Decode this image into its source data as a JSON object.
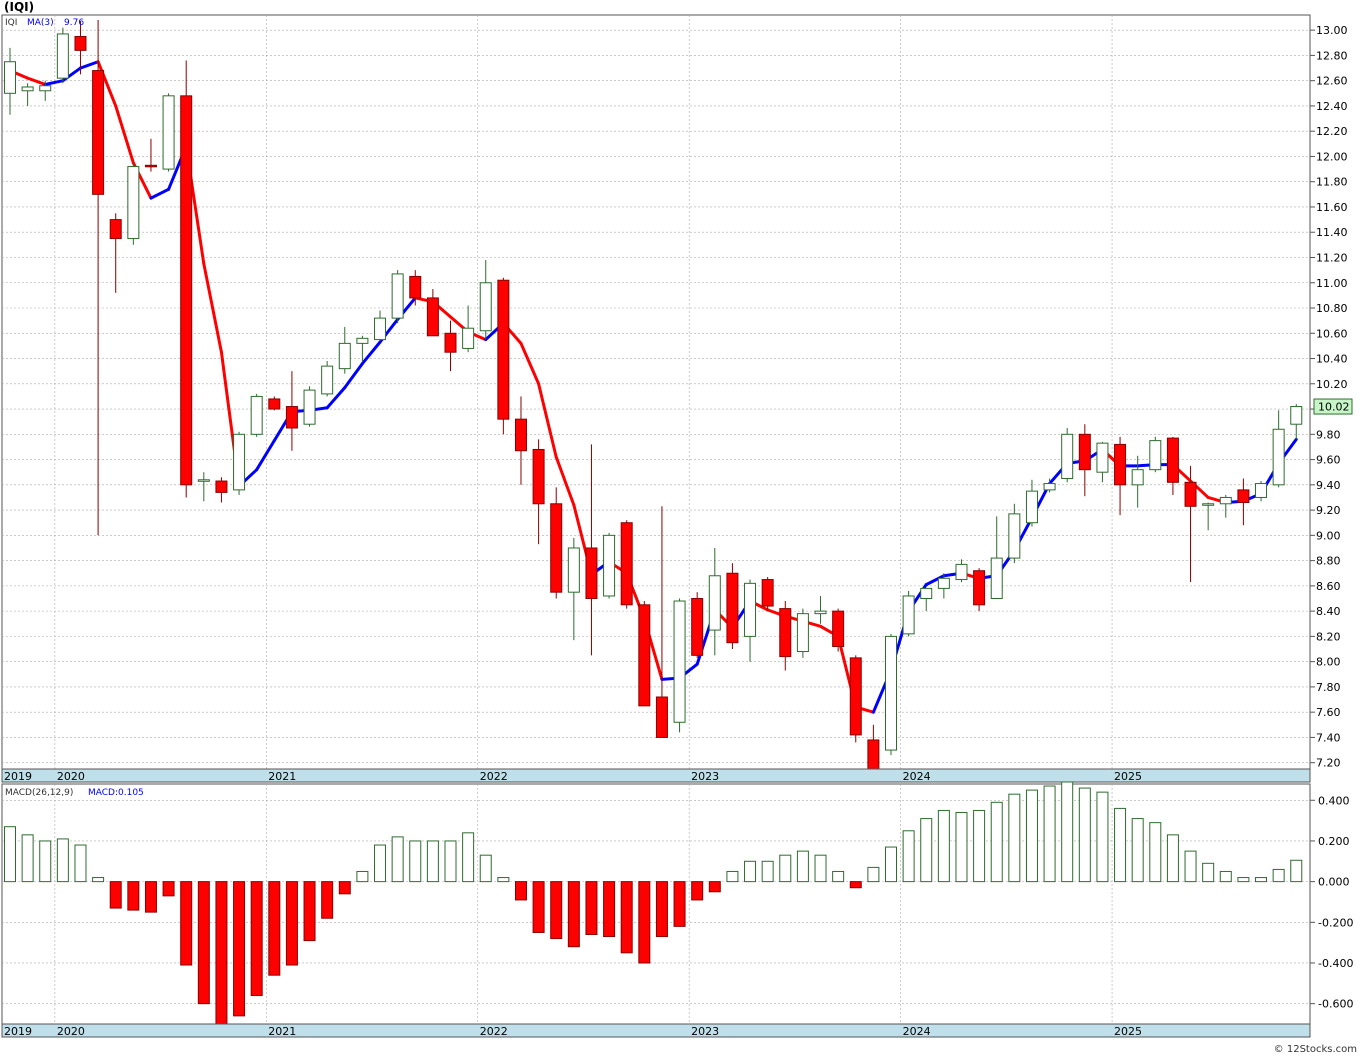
{
  "header": {
    "title": "(IQI)"
  },
  "watermark": "© 12Stocks.com",
  "price_panel": {
    "legend_symbol": "IQI",
    "legend_ma_label": "MA(3)",
    "legend_ma_value": "9.76",
    "last_price_label": "10.02",
    "last_price_value": 10.02,
    "y_ticks": [
      "13.00",
      "12.80",
      "12.60",
      "12.40",
      "12.20",
      "12.00",
      "11.80",
      "11.60",
      "11.40",
      "11.20",
      "11.00",
      "10.80",
      "10.60",
      "10.40",
      "10.20",
      "10.00",
      "9.80",
      "9.60",
      "9.40",
      "9.20",
      "9.00",
      "8.80",
      "8.60",
      "8.40",
      "8.20",
      "8.00",
      "7.80",
      "7.60",
      "7.40",
      "7.20"
    ]
  },
  "macd_panel": {
    "legend_label": "MACD(26,12,9)",
    "legend_value": "MACD:0.105",
    "y_ticks": [
      "0.400",
      "0.200",
      "0.000",
      "-0.200",
      "-0.400",
      "-0.600"
    ]
  },
  "x_axis": {
    "labels": [
      {
        "text": "2019",
        "index": -0.35
      },
      {
        "text": "2020",
        "index": 3.0
      },
      {
        "text": "2021",
        "index": 15.0
      },
      {
        "text": "2022",
        "index": 27.0
      },
      {
        "text": "2023",
        "index": 39.0
      },
      {
        "text": "2024",
        "index": 51.0
      },
      {
        "text": "2025",
        "index": 63.0
      }
    ]
  },
  "colors": {
    "up_border": "#2f6b2f",
    "down_fill": "#ff0000",
    "ma_up": "#0000ff",
    "ma_down": "#ff0000",
    "axis_band": "#bfe0ea",
    "grid": "#aaaaaa",
    "last_price_bg": "#c8f5c8"
  },
  "chart_data": [
    {
      "type": "candlestick",
      "period": "monthly",
      "series_name": "IQI",
      "ylim": [
        7.15,
        13.12
      ],
      "grid": true,
      "candles": [
        {
          "o": 12.5,
          "h": 12.86,
          "l": 12.33,
          "c": 12.75
        },
        {
          "o": 12.52,
          "h": 12.58,
          "l": 12.4,
          "c": 12.55
        },
        {
          "o": 12.52,
          "h": 12.6,
          "l": 12.44,
          "c": 12.56
        },
        {
          "o": 12.62,
          "h": 13.02,
          "l": 12.58,
          "c": 12.97
        },
        {
          "o": 12.95,
          "h": 13.07,
          "l": 12.65,
          "c": 12.84
        },
        {
          "o": 12.68,
          "h": 13.08,
          "l": 9.0,
          "c": 11.7
        },
        {
          "o": 11.5,
          "h": 11.55,
          "l": 10.92,
          "c": 11.35
        },
        {
          "o": 11.35,
          "h": 11.95,
          "l": 11.3,
          "c": 11.92
        },
        {
          "o": 11.93,
          "h": 12.14,
          "l": 11.88,
          "c": 11.92
        },
        {
          "o": 11.9,
          "h": 12.5,
          "l": 11.88,
          "c": 12.48
        },
        {
          "o": 12.48,
          "h": 12.76,
          "l": 9.3,
          "c": 9.4
        },
        {
          "o": 9.44,
          "h": 9.5,
          "l": 9.27,
          "c": 9.44
        },
        {
          "o": 9.43,
          "h": 9.46,
          "l": 9.26,
          "c": 9.34
        },
        {
          "o": 9.36,
          "h": 9.82,
          "l": 9.32,
          "c": 9.8
        },
        {
          "o": 9.8,
          "h": 10.12,
          "l": 9.78,
          "c": 10.1
        },
        {
          "o": 10.08,
          "h": 10.1,
          "l": 9.99,
          "c": 10.0
        },
        {
          "o": 10.02,
          "h": 10.3,
          "l": 9.67,
          "c": 9.85
        },
        {
          "o": 9.88,
          "h": 10.18,
          "l": 9.86,
          "c": 10.15
        },
        {
          "o": 10.12,
          "h": 10.38,
          "l": 10.1,
          "c": 10.34
        },
        {
          "o": 10.32,
          "h": 10.65,
          "l": 10.28,
          "c": 10.52
        },
        {
          "o": 10.52,
          "h": 10.58,
          "l": 10.38,
          "c": 10.56
        },
        {
          "o": 10.55,
          "h": 10.78,
          "l": 10.54,
          "c": 10.72
        },
        {
          "o": 10.72,
          "h": 11.1,
          "l": 10.68,
          "c": 11.07
        },
        {
          "o": 11.05,
          "h": 11.1,
          "l": 10.82,
          "c": 10.88
        },
        {
          "o": 10.88,
          "h": 10.95,
          "l": 10.58,
          "c": 10.58
        },
        {
          "o": 10.6,
          "h": 10.7,
          "l": 10.3,
          "c": 10.45
        },
        {
          "o": 10.48,
          "h": 10.82,
          "l": 10.45,
          "c": 10.64
        },
        {
          "o": 10.62,
          "h": 11.18,
          "l": 10.55,
          "c": 11.0
        },
        {
          "o": 11.02,
          "h": 11.04,
          "l": 9.8,
          "c": 9.92
        },
        {
          "o": 9.92,
          "h": 10.1,
          "l": 9.4,
          "c": 9.67
        },
        {
          "o": 9.68,
          "h": 9.76,
          "l": 8.93,
          "c": 9.25
        },
        {
          "o": 9.25,
          "h": 9.38,
          "l": 8.5,
          "c": 8.55
        },
        {
          "o": 8.55,
          "h": 8.98,
          "l": 8.17,
          "c": 8.9
        },
        {
          "o": 8.9,
          "h": 9.72,
          "l": 8.05,
          "c": 8.5
        },
        {
          "o": 8.52,
          "h": 9.02,
          "l": 8.5,
          "c": 9.0
        },
        {
          "o": 9.1,
          "h": 9.12,
          "l": 8.42,
          "c": 8.45
        },
        {
          "o": 8.45,
          "h": 8.48,
          "l": 7.65,
          "c": 7.65
        },
        {
          "o": 7.72,
          "h": 9.23,
          "l": 7.42,
          "c": 7.4
        },
        {
          "o": 7.52,
          "h": 8.5,
          "l": 7.44,
          "c": 8.48
        },
        {
          "o": 8.5,
          "h": 8.55,
          "l": 8.03,
          "c": 8.05
        },
        {
          "o": 8.25,
          "h": 8.9,
          "l": 8.05,
          "c": 8.68
        },
        {
          "o": 8.7,
          "h": 8.78,
          "l": 8.1,
          "c": 8.15
        },
        {
          "o": 8.2,
          "h": 8.65,
          "l": 8.0,
          "c": 8.62
        },
        {
          "o": 8.65,
          "h": 8.67,
          "l": 8.4,
          "c": 8.44
        },
        {
          "o": 8.42,
          "h": 8.48,
          "l": 7.93,
          "c": 8.04
        },
        {
          "o": 8.08,
          "h": 8.42,
          "l": 8.03,
          "c": 8.38
        },
        {
          "o": 8.38,
          "h": 8.52,
          "l": 8.3,
          "c": 8.4
        },
        {
          "o": 8.4,
          "h": 8.42,
          "l": 8.08,
          "c": 8.12
        },
        {
          "o": 8.03,
          "h": 8.05,
          "l": 7.36,
          "c": 7.42
        },
        {
          "o": 7.38,
          "h": 7.5,
          "l": 7.15,
          "c": 7.15
        },
        {
          "o": 7.3,
          "h": 8.22,
          "l": 7.26,
          "c": 8.2
        },
        {
          "o": 8.22,
          "h": 8.56,
          "l": 8.2,
          "c": 8.52
        },
        {
          "o": 8.5,
          "h": 8.58,
          "l": 8.4,
          "c": 8.58
        },
        {
          "o": 8.58,
          "h": 8.7,
          "l": 8.5,
          "c": 8.66
        },
        {
          "o": 8.65,
          "h": 8.81,
          "l": 8.63,
          "c": 8.77
        },
        {
          "o": 8.72,
          "h": 8.74,
          "l": 8.4,
          "c": 8.45
        },
        {
          "o": 8.5,
          "h": 9.15,
          "l": 8.5,
          "c": 8.82
        },
        {
          "o": 8.82,
          "h": 9.25,
          "l": 8.78,
          "c": 9.17
        },
        {
          "o": 9.1,
          "h": 9.44,
          "l": 9.07,
          "c": 9.35
        },
        {
          "o": 9.36,
          "h": 9.45,
          "l": 9.34,
          "c": 9.41
        },
        {
          "o": 9.45,
          "h": 9.85,
          "l": 9.42,
          "c": 9.8
        },
        {
          "o": 9.8,
          "h": 9.88,
          "l": 9.31,
          "c": 9.52
        },
        {
          "o": 9.5,
          "h": 9.74,
          "l": 9.42,
          "c": 9.73
        },
        {
          "o": 9.72,
          "h": 9.78,
          "l": 9.16,
          "c": 9.4
        },
        {
          "o": 9.4,
          "h": 9.63,
          "l": 9.22,
          "c": 9.52
        },
        {
          "o": 9.52,
          "h": 9.78,
          "l": 9.5,
          "c": 9.75
        },
        {
          "o": 9.77,
          "h": 9.78,
          "l": 9.32,
          "c": 9.42
        },
        {
          "o": 9.42,
          "h": 9.55,
          "l": 8.63,
          "c": 9.23
        },
        {
          "o": 9.25,
          "h": 9.26,
          "l": 9.04,
          "c": 9.25
        },
        {
          "o": 9.25,
          "h": 9.32,
          "l": 9.14,
          "c": 9.3
        },
        {
          "o": 9.36,
          "h": 9.45,
          "l": 9.08,
          "c": 9.26
        },
        {
          "o": 9.3,
          "h": 9.43,
          "l": 9.27,
          "c": 9.41
        },
        {
          "o": 9.4,
          "h": 9.99,
          "l": 9.38,
          "c": 9.84
        },
        {
          "o": 9.88,
          "h": 10.04,
          "l": 9.76,
          "c": 10.02
        }
      ],
      "ma": [
        12.68,
        12.62,
        12.57,
        12.6,
        12.7,
        12.75,
        12.4,
        11.95,
        11.67,
        11.74,
        12.08,
        11.15,
        10.45,
        9.39,
        9.52,
        9.75,
        9.98,
        9.99,
        10.01,
        10.17,
        10.36,
        10.53,
        10.71,
        10.88,
        10.85,
        10.73,
        10.61,
        10.55,
        10.68,
        10.52,
        10.2,
        9.62,
        9.24,
        8.69,
        8.79,
        8.7,
        8.34,
        7.86,
        7.87,
        7.98,
        8.41,
        8.27,
        8.48,
        8.41,
        8.36,
        8.32,
        8.28,
        8.2,
        7.64,
        7.6,
        7.93,
        8.4,
        8.61,
        8.68,
        8.7,
        8.66,
        8.68,
        8.88,
        9.14,
        9.41,
        9.57,
        9.59,
        9.68,
        9.55,
        9.55,
        9.56,
        9.56,
        9.43,
        9.3,
        9.26,
        9.27,
        9.33,
        9.57,
        9.76
      ]
    },
    {
      "type": "bar",
      "series_name": "MACD(26,12,9)",
      "ylim": [
        -0.7,
        0.48
      ],
      "values": [
        0.27,
        0.23,
        0.2,
        0.21,
        0.18,
        0.02,
        -0.13,
        -0.14,
        -0.15,
        -0.07,
        -0.41,
        -0.6,
        -0.7,
        -0.66,
        -0.56,
        -0.46,
        -0.41,
        -0.29,
        -0.18,
        -0.06,
        0.05,
        0.18,
        0.22,
        0.2,
        0.2,
        0.2,
        0.24,
        0.13,
        0.02,
        -0.09,
        -0.25,
        -0.28,
        -0.32,
        -0.26,
        -0.27,
        -0.35,
        -0.4,
        -0.27,
        -0.22,
        -0.09,
        -0.05,
        0.05,
        0.1,
        0.1,
        0.13,
        0.15,
        0.13,
        0.05,
        -0.03,
        0.07,
        0.17,
        0.25,
        0.31,
        0.35,
        0.34,
        0.35,
        0.39,
        0.43,
        0.45,
        0.47,
        0.49,
        0.46,
        0.44,
        0.36,
        0.31,
        0.29,
        0.23,
        0.15,
        0.09,
        0.05,
        0.02,
        0.02,
        0.06,
        0.105
      ]
    }
  ]
}
